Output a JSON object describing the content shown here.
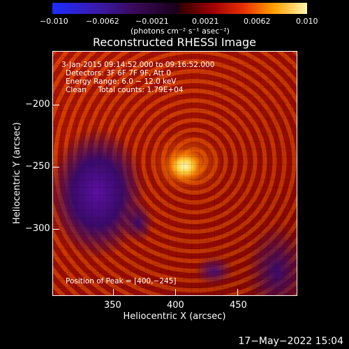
{
  "colorbar": {
    "ticks": [
      "−0.010",
      "−0.0062",
      "−0.0021",
      "0.0021",
      "0.0062",
      "0.010"
    ],
    "units": "(photons cm⁻² s⁻¹ asec⁻²)",
    "colors": [
      "#1d2cff",
      "#3a0a5a",
      "#a00000",
      "#ffa000",
      "#fff6b0"
    ]
  },
  "title": "Reconstructed RHESSI Image",
  "info": {
    "time_range": "3-Jan-2015 09:14:52.000 to 09:16:52.000",
    "detectors": "Detectors: 3F 6F 7F 9F, Att 0",
    "energy": "Energy Range: 6.0 − 12.0 keV",
    "clean": "Clean     Total counts: 1.79E+04",
    "peak": "Position of Peak = [400,−245]"
  },
  "x_axis": {
    "label": "Heliocentric X (arcsec)",
    "ticks": [
      "350",
      "400",
      "450"
    ]
  },
  "y_axis": {
    "label": "Heliocentric Y (arcsec)",
    "ticks": [
      "−200",
      "−250",
      "−300"
    ]
  },
  "datestamp": "17−May−2022 15:04"
}
